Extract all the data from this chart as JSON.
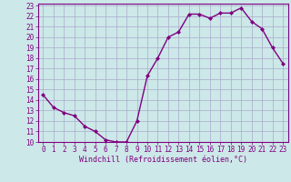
{
  "x": [
    0,
    1,
    2,
    3,
    4,
    5,
    6,
    7,
    8,
    9,
    10,
    11,
    12,
    13,
    14,
    15,
    16,
    17,
    18,
    19,
    20,
    21,
    22,
    23
  ],
  "y": [
    14.5,
    13.3,
    12.8,
    12.5,
    11.5,
    11.0,
    10.2,
    10.0,
    10.0,
    12.0,
    16.3,
    18.0,
    20.0,
    20.5,
    22.2,
    22.2,
    21.8,
    22.3,
    22.3,
    22.8,
    21.5,
    20.8,
    19.0,
    17.5
  ],
  "line_color": "#800080",
  "marker": "D",
  "marker_size": 2.0,
  "bg_color": "#cce8e8",
  "grid_color": "#aaaacc",
  "xlabel": "Windchill (Refroidissement éolien,°C)",
  "xlabel_color": "#800080",
  "ylim": [
    10,
    23
  ],
  "xlim": [
    -0.5,
    23.5
  ],
  "yticks": [
    10,
    11,
    12,
    13,
    14,
    15,
    16,
    17,
    18,
    19,
    20,
    21,
    22,
    23
  ],
  "xticks": [
    0,
    1,
    2,
    3,
    4,
    5,
    6,
    7,
    8,
    9,
    10,
    11,
    12,
    13,
    14,
    15,
    16,
    17,
    18,
    19,
    20,
    21,
    22,
    23
  ],
  "tick_fontsize": 5.5,
  "xlabel_fontsize": 6.0,
  "line_width": 1.0,
  "spine_color": "#800080"
}
